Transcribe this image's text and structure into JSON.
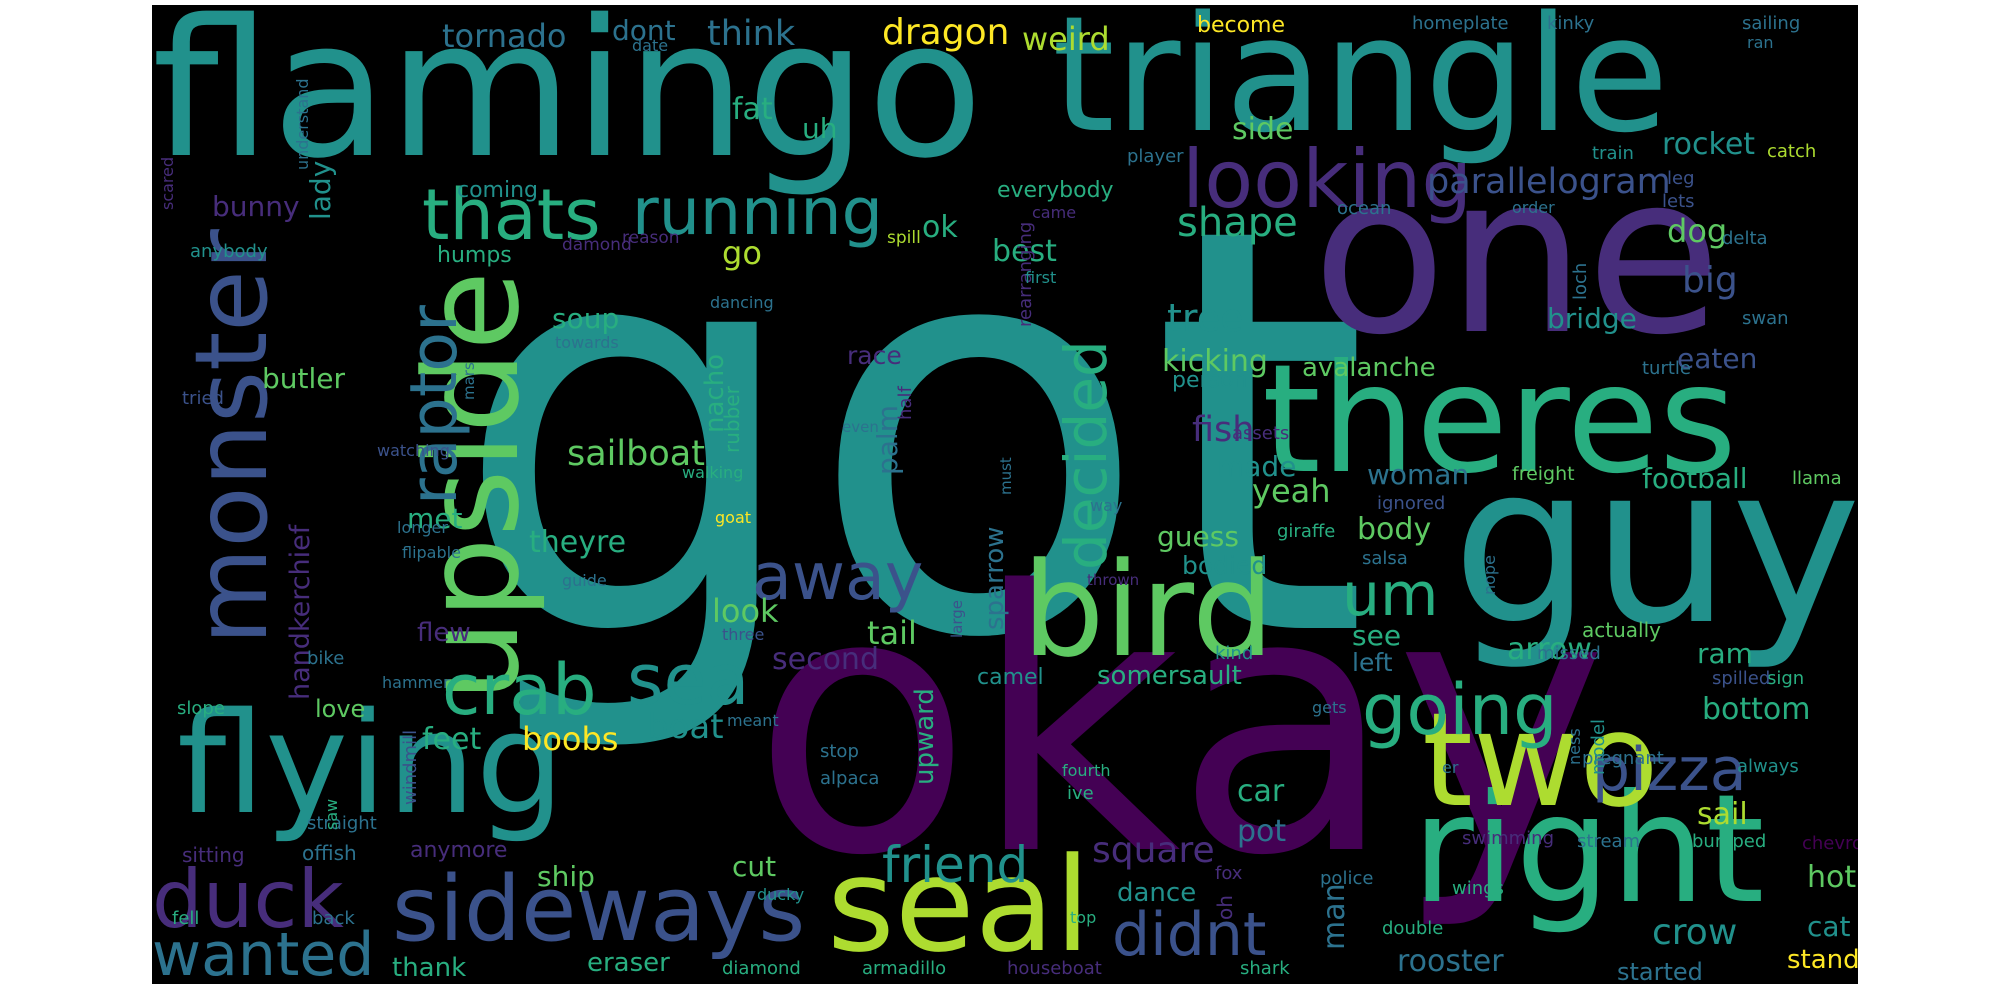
{
  "palette": {
    "c0": "#440154",
    "c1": "#472d7b",
    "c2": "#3b528b",
    "c3": "#2c728e",
    "c4": "#21918c",
    "c5": "#28ae80",
    "c6": "#5ec962",
    "c7": "#addc30",
    "c8": "#fde725"
  },
  "words": [
    {
      "text": "got",
      "color": "c4"
    },
    {
      "text": "okay",
      "color": "c0"
    },
    {
      "text": "flamingo",
      "color": "c4"
    },
    {
      "text": "triangle",
      "color": "c4"
    },
    {
      "text": "one",
      "color": "c1"
    },
    {
      "text": "guy",
      "color": "c4"
    },
    {
      "text": "theres",
      "color": "c5"
    },
    {
      "text": "upside",
      "color": "c6"
    },
    {
      "text": "monster",
      "color": "c2"
    },
    {
      "text": "flying",
      "color": "c4"
    },
    {
      "text": "bird",
      "color": "c6"
    },
    {
      "text": "right",
      "color": "c5"
    },
    {
      "text": "seal",
      "color": "c7"
    },
    {
      "text": "two",
      "color": "c7"
    },
    {
      "text": "sideways",
      "color": "c2"
    },
    {
      "text": "looking",
      "color": "c1"
    },
    {
      "text": "running",
      "color": "c4"
    },
    {
      "text": "thats",
      "color": "c5"
    },
    {
      "text": "raptor",
      "color": "c3"
    },
    {
      "text": "crab",
      "color": "c5"
    },
    {
      "text": "sea",
      "color": "c4"
    },
    {
      "text": "duck",
      "color": "c1"
    },
    {
      "text": "wanted",
      "color": "c3"
    },
    {
      "text": "away",
      "color": "c2"
    },
    {
      "text": "um",
      "color": "c5"
    },
    {
      "text": "going",
      "color": "c5"
    },
    {
      "text": "pizza",
      "color": "c2"
    },
    {
      "text": "didnt",
      "color": "c2"
    },
    {
      "text": "friend",
      "color": "c4"
    },
    {
      "text": "decided",
      "color": "c5"
    },
    {
      "text": "tornado",
      "color": "c3"
    },
    {
      "text": "dont",
      "color": "c3"
    },
    {
      "text": "think",
      "color": "c3"
    },
    {
      "text": "dragon",
      "color": "c8"
    },
    {
      "text": "weird",
      "color": "c7"
    },
    {
      "text": "become",
      "color": "c8"
    },
    {
      "text": "homeplate",
      "color": "c3"
    },
    {
      "text": "kinky",
      "color": "c3"
    },
    {
      "text": "sailing",
      "color": "c3"
    },
    {
      "text": "ran",
      "color": "c3"
    },
    {
      "text": "date",
      "color": "c3"
    },
    {
      "text": "parallelogram",
      "color": "c2"
    },
    {
      "text": "rocket",
      "color": "c4"
    },
    {
      "text": "catch",
      "color": "c7"
    },
    {
      "text": "train",
      "color": "c4"
    },
    {
      "text": "player",
      "color": "c3"
    },
    {
      "text": "fat",
      "color": "c5"
    },
    {
      "text": "uh",
      "color": "c5"
    },
    {
      "text": "side",
      "color": "c6"
    },
    {
      "text": "shape",
      "color": "c5"
    },
    {
      "text": "bunny",
      "color": "c1"
    },
    {
      "text": "lady",
      "color": "c4"
    },
    {
      "text": "coming",
      "color": "c4"
    },
    {
      "text": "everybody",
      "color": "c5"
    },
    {
      "text": "ok",
      "color": "c5"
    },
    {
      "text": "go",
      "color": "c7"
    },
    {
      "text": "best",
      "color": "c5"
    },
    {
      "text": "humps",
      "color": "c5"
    },
    {
      "text": "damond",
      "color": "c1"
    },
    {
      "text": "reason",
      "color": "c1"
    },
    {
      "text": "spill",
      "color": "c7"
    },
    {
      "text": "came",
      "color": "c1"
    },
    {
      "text": "dog",
      "color": "c6"
    },
    {
      "text": "big",
      "color": "c2"
    },
    {
      "text": "bridge",
      "color": "c4"
    },
    {
      "text": "eaten",
      "color": "c2"
    },
    {
      "text": "tree",
      "color": "c4"
    },
    {
      "text": "kicking",
      "color": "c6"
    },
    {
      "text": "soup",
      "color": "c5"
    },
    {
      "text": "race",
      "color": "c1"
    },
    {
      "text": "avalanche",
      "color": "c6"
    },
    {
      "text": "person",
      "color": "c4"
    },
    {
      "text": "fish",
      "color": "c1"
    },
    {
      "text": "made",
      "color": "c4"
    },
    {
      "text": "sailboat",
      "color": "c6"
    },
    {
      "text": "butler",
      "color": "c6"
    },
    {
      "text": "handkerchief",
      "color": "c1"
    },
    {
      "text": "nacho",
      "color": "c5"
    },
    {
      "text": "rubber",
      "color": "c5"
    },
    {
      "text": "palm",
      "color": "c3"
    },
    {
      "text": "yeah",
      "color": "c6"
    },
    {
      "text": "woman",
      "color": "c3"
    },
    {
      "text": "football",
      "color": "c5"
    },
    {
      "text": "freight",
      "color": "c6"
    },
    {
      "text": "llama",
      "color": "c6"
    },
    {
      "text": "met",
      "color": "c5"
    },
    {
      "text": "theyre",
      "color": "c5"
    },
    {
      "text": "guess",
      "color": "c6"
    },
    {
      "text": "body",
      "color": "c6"
    },
    {
      "text": "bodied",
      "color": "c4"
    },
    {
      "text": "look",
      "color": "c6"
    },
    {
      "text": "tail",
      "color": "c6"
    },
    {
      "text": "see",
      "color": "c5"
    },
    {
      "text": "arrow",
      "color": "c5"
    },
    {
      "text": "left",
      "color": "c3"
    },
    {
      "text": "flew",
      "color": "c1"
    },
    {
      "text": "second",
      "color": "c1"
    },
    {
      "text": "sparrow",
      "color": "c3"
    },
    {
      "text": "ram",
      "color": "c5"
    },
    {
      "text": "somersault",
      "color": "c5"
    },
    {
      "text": "camel",
      "color": "c4"
    },
    {
      "text": "love",
      "color": "c6"
    },
    {
      "text": "feet",
      "color": "c5"
    },
    {
      "text": "boobs",
      "color": "c8"
    },
    {
      "text": "boat",
      "color": "c4"
    },
    {
      "text": "upward",
      "color": "c5"
    },
    {
      "text": "bottom",
      "color": "c5"
    },
    {
      "text": "square",
      "color": "c1"
    },
    {
      "text": "car",
      "color": "c5"
    },
    {
      "text": "pot",
      "color": "c3"
    },
    {
      "text": "sail",
      "color": "c7"
    },
    {
      "text": "crow",
      "color": "c4"
    },
    {
      "text": "ship",
      "color": "c6"
    },
    {
      "text": "cut",
      "color": "c6"
    },
    {
      "text": "dance",
      "color": "c4"
    },
    {
      "text": "man",
      "color": "c3"
    },
    {
      "text": "hot",
      "color": "c6"
    },
    {
      "text": "cat",
      "color": "c4"
    },
    {
      "text": "thank",
      "color": "c5"
    },
    {
      "text": "eraser",
      "color": "c5"
    },
    {
      "text": "rooster",
      "color": "c3"
    },
    {
      "text": "started",
      "color": "c3"
    },
    {
      "text": "stand",
      "color": "c8"
    },
    {
      "text": "anymore",
      "color": "c1"
    },
    {
      "text": "offish",
      "color": "c3"
    },
    {
      "text": "sitting",
      "color": "c1"
    },
    {
      "text": "fell",
      "color": "c5"
    },
    {
      "text": "back",
      "color": "c3"
    },
    {
      "text": "diamond",
      "color": "c5"
    },
    {
      "text": "armadillo",
      "color": "c5"
    },
    {
      "text": "houseboat",
      "color": "c1"
    },
    {
      "text": "shark",
      "color": "c5"
    },
    {
      "text": "top",
      "color": "c5"
    },
    {
      "text": "double",
      "color": "c5"
    },
    {
      "text": "oh",
      "color": "c1"
    },
    {
      "text": "wings",
      "color": "c5"
    },
    {
      "text": "police",
      "color": "c3"
    },
    {
      "text": "fox",
      "color": "c1"
    },
    {
      "text": "stream",
      "color": "c3"
    },
    {
      "text": "bumped",
      "color": "c5"
    },
    {
      "text": "chevron",
      "color": "c0"
    },
    {
      "text": "swimming",
      "color": "c1"
    },
    {
      "text": "pregnant",
      "color": "c3"
    },
    {
      "text": "always",
      "color": "c4"
    },
    {
      "text": "model",
      "color": "c4"
    },
    {
      "text": "ness",
      "color": "c3"
    },
    {
      "text": "er",
      "color": "c3"
    },
    {
      "text": "gets",
      "color": "c3"
    },
    {
      "text": "sign",
      "color": "c5"
    },
    {
      "text": "spilled",
      "color": "c2"
    },
    {
      "text": "actually",
      "color": "c6"
    },
    {
      "text": "missed",
      "color": "c3"
    },
    {
      "text": "kind",
      "color": "c4"
    },
    {
      "text": "nope",
      "color": "c3"
    },
    {
      "text": "salsa",
      "color": "c3"
    },
    {
      "text": "giraffe",
      "color": "c5"
    },
    {
      "text": "ignored",
      "color": "c2"
    },
    {
      "text": "assets",
      "color": "c1"
    },
    {
      "text": "turtle",
      "color": "c3"
    },
    {
      "text": "swan",
      "color": "c3"
    },
    {
      "text": "delta",
      "color": "c3"
    },
    {
      "text": "lets",
      "color": "c2"
    },
    {
      "text": "leg",
      "color": "c2"
    },
    {
      "text": "order",
      "color": "c3"
    },
    {
      "text": "ocean",
      "color": "c3"
    },
    {
      "text": "loch",
      "color": "c3"
    },
    {
      "text": "rearranging",
      "color": "c1"
    },
    {
      "text": "must",
      "color": "c3"
    },
    {
      "text": "half",
      "color": "c1"
    },
    {
      "text": "even",
      "color": "c3"
    },
    {
      "text": "way",
      "color": "c3"
    },
    {
      "text": "thrown",
      "color": "c1"
    },
    {
      "text": "large",
      "color": "c2"
    },
    {
      "text": "three",
      "color": "c2"
    },
    {
      "text": "guide",
      "color": "c3"
    },
    {
      "text": "walking",
      "color": "c5"
    },
    {
      "text": "goat",
      "color": "c8"
    },
    {
      "text": "towards",
      "color": "c3"
    },
    {
      "text": "dancing",
      "color": "c3"
    },
    {
      "text": "first",
      "color": "c4"
    },
    {
      "text": "stop",
      "color": "c3"
    },
    {
      "text": "alpaca",
      "color": "c3"
    },
    {
      "text": "fourth",
      "color": "c5"
    },
    {
      "text": "ive",
      "color": "c5"
    },
    {
      "text": "meant",
      "color": "c3"
    },
    {
      "text": "ducky",
      "color": "c4"
    },
    {
      "text": "straight",
      "color": "c3"
    },
    {
      "text": "slope",
      "color": "c5"
    },
    {
      "text": "bike",
      "color": "c3"
    },
    {
      "text": "hammer",
      "color": "c3"
    },
    {
      "text": "saw",
      "color": "c5"
    },
    {
      "text": "windmill",
      "color": "c2"
    },
    {
      "text": "understand",
      "color": "c3"
    },
    {
      "text": "scared",
      "color": "c1"
    },
    {
      "text": "anybody",
      "color": "c4"
    },
    {
      "text": "tried",
      "color": "c2"
    },
    {
      "text": "watching",
      "color": "c2"
    },
    {
      "text": "mars",
      "color": "c3"
    },
    {
      "text": "longer",
      "color": "c3"
    },
    {
      "text": "flipable",
      "color": "c3"
    }
  ]
}
